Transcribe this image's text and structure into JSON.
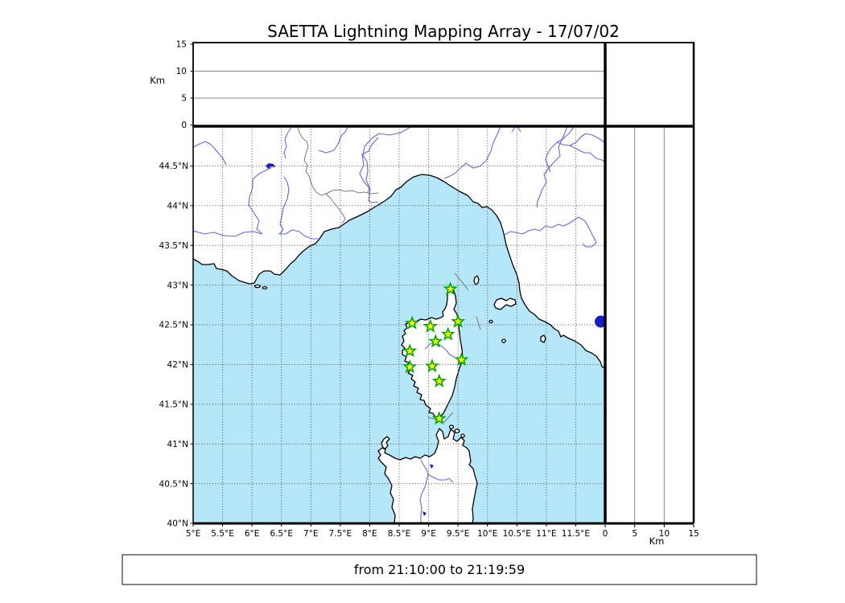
{
  "title": "SAETTA Lightning Mapping Array - 17/07/02",
  "caption": "from 21:10:00 to 21:19:59",
  "altitude_axes": {
    "unit_label": "Km",
    "tick_values": [
      0,
      5,
      10,
      15
    ],
    "tick_labels": [
      "0",
      "5",
      "10",
      "15"
    ],
    "gridline_values": [
      5,
      10
    ],
    "range_km": [
      0,
      15
    ]
  },
  "map_axes": {
    "lon_range": [
      5,
      12
    ],
    "lat_range": [
      40,
      45
    ],
    "lon_tick_values": [
      5,
      5.5,
      6,
      6.5,
      7,
      7.5,
      8,
      8.5,
      9,
      9.5,
      10,
      10.5,
      11,
      11.5
    ],
    "lon_tick_labels": [
      "5°E",
      "5.5°E",
      "6°E",
      "6.5°E",
      "7°E",
      "7.5°E",
      "8°E",
      "8.5°E",
      "9°E",
      "9.5°E",
      "10°E",
      "10.5°E",
      "11°E",
      "11.5°E"
    ],
    "lat_tick_values": [
      40,
      40.5,
      41,
      41.5,
      42,
      42.5,
      43,
      43.5,
      44,
      44.5
    ],
    "lat_tick_labels": [
      "40°N",
      "40.5°N",
      "41°N",
      "41.5°N",
      "42°N",
      "42.5°N",
      "43°N",
      "43.5°N",
      "44°N",
      "44.5°N"
    ]
  },
  "stations": [
    {
      "lon": 9.37,
      "lat": 42.95
    },
    {
      "lon": 8.72,
      "lat": 42.52
    },
    {
      "lon": 9.03,
      "lat": 42.48
    },
    {
      "lon": 9.5,
      "lat": 42.54
    },
    {
      "lon": 9.33,
      "lat": 42.38
    },
    {
      "lon": 9.12,
      "lat": 42.29
    },
    {
      "lon": 8.68,
      "lat": 42.17
    },
    {
      "lon": 9.56,
      "lat": 42.06
    },
    {
      "lon": 8.68,
      "lat": 41.97
    },
    {
      "lon": 9.06,
      "lat": 41.98
    },
    {
      "lon": 9.18,
      "lat": 41.79
    },
    {
      "lon": 9.18,
      "lat": 41.32
    }
  ],
  "colors": {
    "sea": "#b6e7f8",
    "land": "#ffffff",
    "coastline": "#000000",
    "river": "#6666dd",
    "country_border": "#7b7b7b",
    "graticule": "#4a4a4a",
    "panel_grid": "#888888",
    "station_fill": "#ffff00",
    "station_stroke": "#00a800",
    "lake": "#1a1acc"
  }
}
